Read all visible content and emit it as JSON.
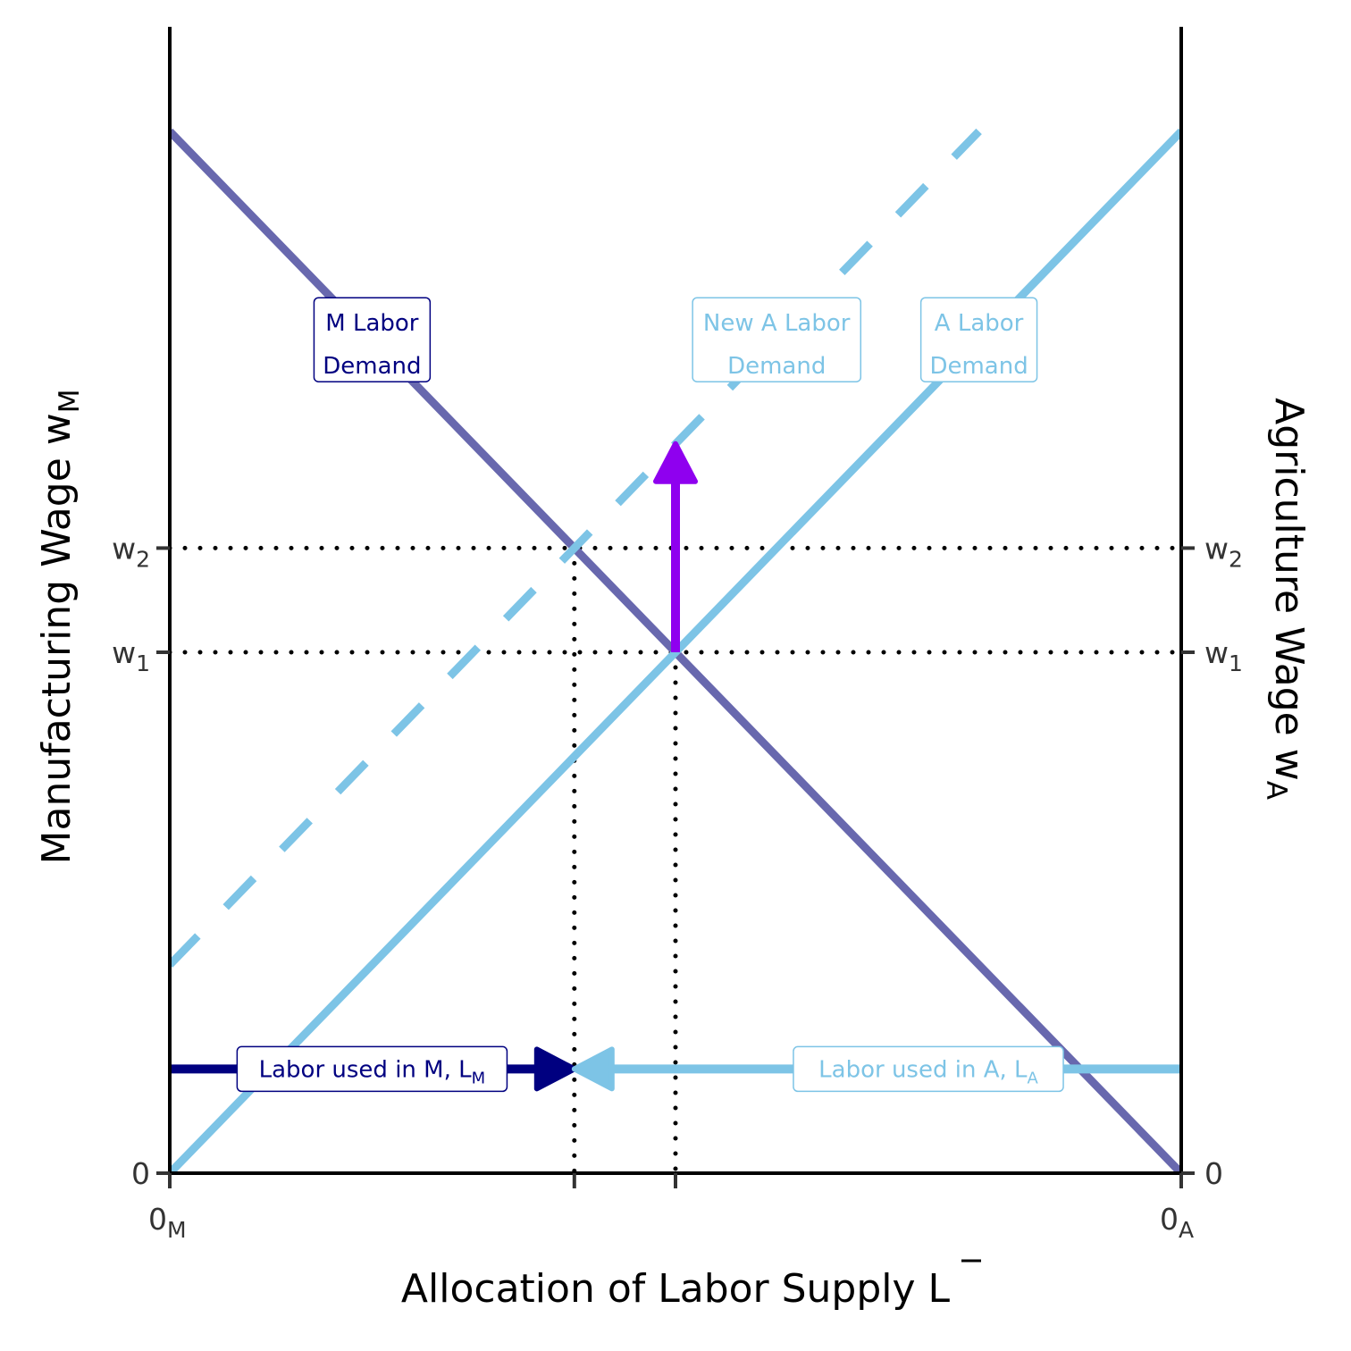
{
  "chart_data": {
    "type": "line",
    "xlabel": "Allocation of Labor Supply L",
    "ylabel_left": "Manufacturing Wage w",
    "ylabel_left_sub": "M",
    "ylabel_right": "Agriculture Wage w",
    "ylabel_right_sub": "A",
    "xlim": [
      0,
      10
    ],
    "ylim": [
      0,
      10
    ],
    "x_ticks": [
      {
        "value": 0,
        "label": "0",
        "sub": "M"
      },
      {
        "value": 4,
        "label": "",
        "sub": ""
      },
      {
        "value": 5,
        "label": "",
        "sub": ""
      },
      {
        "value": 10,
        "label": "0",
        "sub": "A"
      }
    ],
    "y_ticks": [
      {
        "value": 0,
        "label": "0",
        "sub": ""
      },
      {
        "value": 5,
        "label": "w",
        "sub": "1"
      },
      {
        "value": 6,
        "label": "w",
        "sub": "2"
      }
    ],
    "series": [
      {
        "name": "M Labor Demand",
        "color": "#6868ae",
        "style": "solid",
        "points": [
          [
            0,
            10
          ],
          [
            10,
            0
          ]
        ]
      },
      {
        "name": "A Labor Demand",
        "color": "#7dc4e6",
        "style": "solid",
        "points": [
          [
            0,
            0
          ],
          [
            10,
            10
          ]
        ]
      },
      {
        "name": "New A Labor Demand",
        "color": "#7dc4e6",
        "style": "dashed",
        "points": [
          [
            0,
            2
          ],
          [
            8,
            10
          ]
        ]
      }
    ],
    "reference_lines": [
      {
        "orientation": "horizontal",
        "y": 6,
        "style": "dotted"
      },
      {
        "orientation": "horizontal",
        "y": 5,
        "style": "dotted"
      },
      {
        "orientation": "vertical",
        "x": 4,
        "y_top": 6,
        "style": "dotted"
      },
      {
        "orientation": "vertical",
        "x": 5,
        "y_top": 5,
        "style": "dotted"
      }
    ],
    "arrows": [
      {
        "name": "labor-m",
        "color": "#000080",
        "from": [
          0,
          1
        ],
        "to": [
          4,
          1
        ]
      },
      {
        "name": "labor-a",
        "color": "#7dc4e6",
        "from": [
          10,
          1
        ],
        "to": [
          4,
          1
        ]
      },
      {
        "name": "demand-shift",
        "color": "#8f00ef",
        "from": [
          5,
          5
        ],
        "to": [
          5,
          7
        ]
      }
    ],
    "annotations": [
      {
        "line1": "M Labor",
        "line2": "Demand",
        "x": 2,
        "y": 8,
        "color": "#000080"
      },
      {
        "line1": "New A Labor",
        "line2": "Demand",
        "x": 6,
        "y": 8,
        "color": "#7dc4e6"
      },
      {
        "line1": "A Labor",
        "line2": "Demand",
        "x": 8,
        "y": 8,
        "color": "#7dc4e6"
      },
      {
        "text": "Labor used in M, L",
        "sub": "M",
        "x": 2,
        "y": 1,
        "color": "#000080"
      },
      {
        "text": "Labor used in A, L",
        "sub": "A",
        "x": 7.5,
        "y": 1,
        "color": "#7dc4e6"
      }
    ],
    "grid": false,
    "legend": "none"
  }
}
